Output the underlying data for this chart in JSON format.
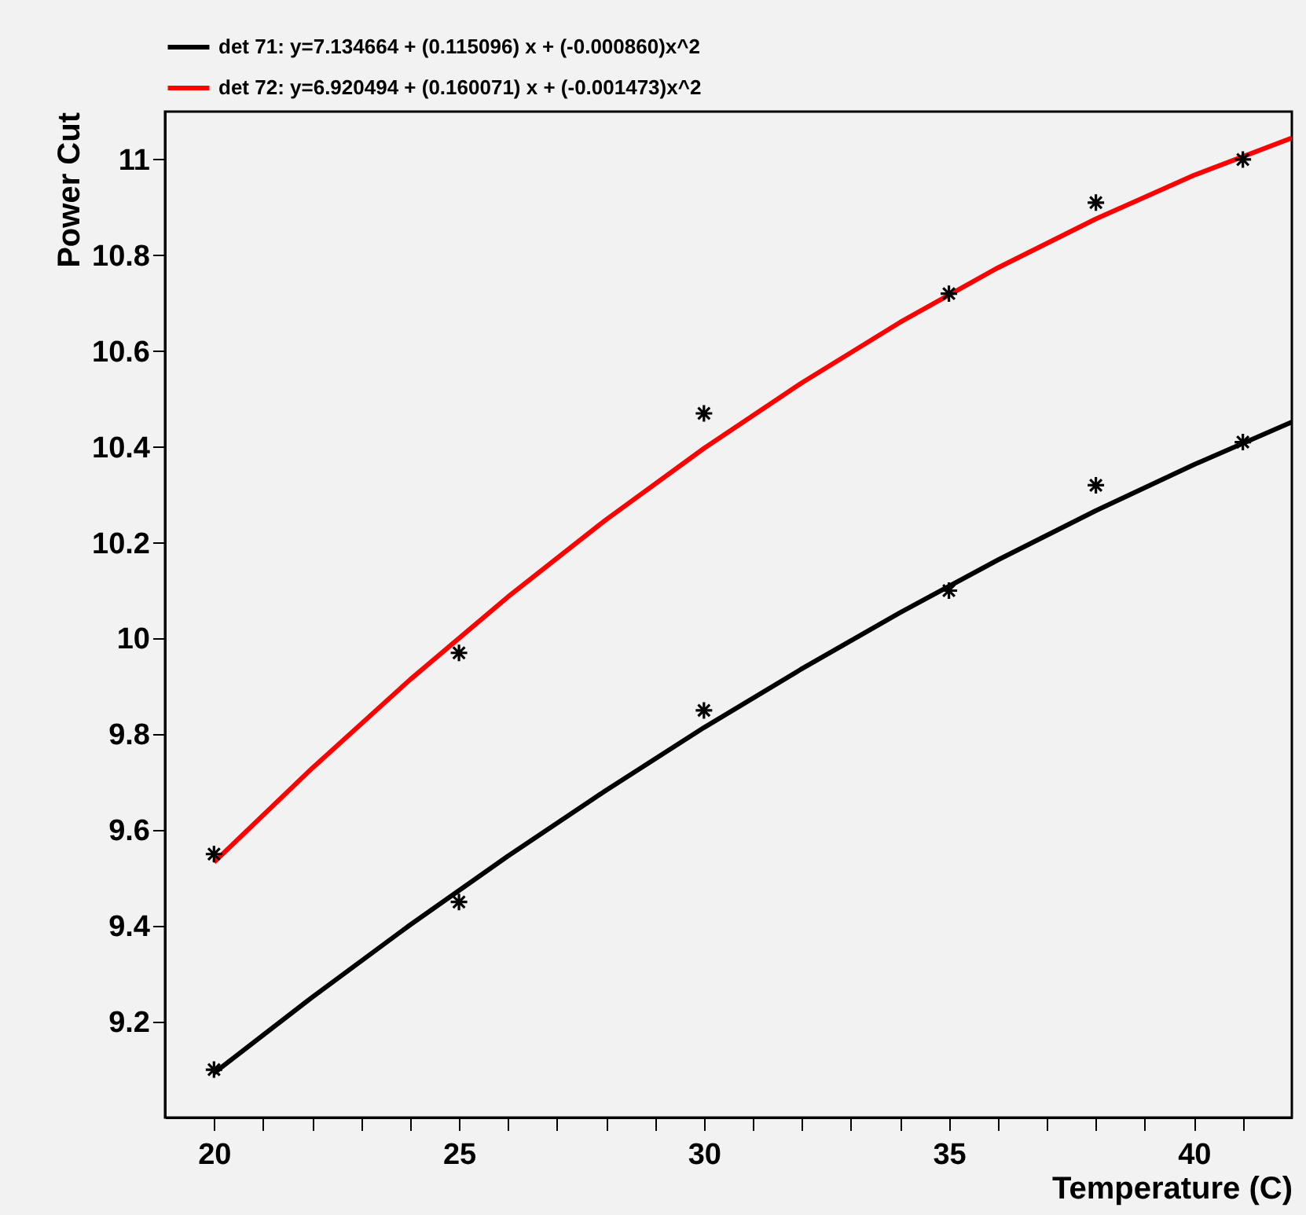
{
  "chart_data": {
    "type": "scatter",
    "xlabel": "Temperature (C)",
    "ylabel": "Power Cut",
    "xlim": [
      19,
      42
    ],
    "ylim": [
      9,
      11.1
    ],
    "xticks": [
      20,
      {
        "value": 21,
        "label": null
      },
      {
        "value": 22,
        "label": null
      },
      {
        "value": 23,
        "label": null
      },
      {
        "value": 24,
        "label": null
      },
      25,
      {
        "value": 26,
        "label": null
      },
      {
        "value": 27,
        "label": null
      },
      {
        "value": 28,
        "label": null
      },
      {
        "value": 29,
        "label": null
      },
      30,
      {
        "value": 31,
        "label": null
      },
      {
        "value": 32,
        "label": null
      },
      {
        "value": 33,
        "label": null
      },
      {
        "value": 34,
        "label": null
      },
      35,
      {
        "value": 36,
        "label": null
      },
      {
        "value": 37,
        "label": null
      },
      {
        "value": 38,
        "label": null
      },
      {
        "value": 39,
        "label": null
      },
      40,
      {
        "value": 41,
        "label": null
      }
    ],
    "yticks": [
      9.2,
      9.4,
      9.6,
      9.8,
      10,
      10.2,
      10.4,
      10.6,
      10.8,
      11
    ],
    "grid": false,
    "legend": "top",
    "line_style": "solid",
    "series": [
      {
        "name": "det 71: y=7.134664 + (0.115096) x + (-0.000860)x^2",
        "type": "line",
        "color": "#000000",
        "marker": "none",
        "x": [
          20,
          22,
          24,
          26,
          28,
          30,
          32,
          34,
          36,
          38,
          40,
          42
        ],
        "values": [
          9.093,
          9.251,
          9.402,
          9.546,
          9.683,
          9.814,
          9.937,
          10.054,
          10.164,
          10.267,
          10.363,
          10.452
        ]
      },
      {
        "name": "det 72: y=6.920494 + (0.160071) x + (-0.001473)x^2",
        "type": "line",
        "color": "#ff0000",
        "marker": "none",
        "x": [
          20,
          22,
          24,
          26,
          28,
          30,
          32,
          34,
          36,
          38,
          40,
          42
        ],
        "values": [
          9.533,
          9.729,
          9.914,
          10.087,
          10.248,
          10.397,
          10.534,
          10.66,
          10.774,
          10.876,
          10.967,
          11.045
        ]
      },
      {
        "color": "#000000",
        "marker": "cross",
        "x": [
          20,
          25,
          30,
          35,
          38,
          41
        ],
        "values": [
          9.1,
          9.45,
          9.85,
          10.1,
          10.32,
          10.41
        ]
      },
      {
        "color": "#000000",
        "marker": "cross",
        "x": [
          20,
          25,
          30,
          35,
          38,
          41
        ],
        "values": [
          9.55,
          9.97,
          10.47,
          10.72,
          10.91,
          11.0
        ]
      }
    ]
  }
}
